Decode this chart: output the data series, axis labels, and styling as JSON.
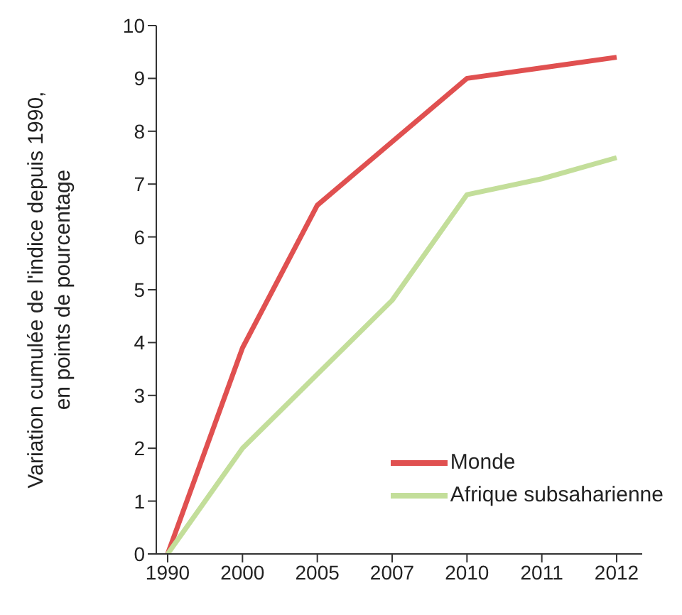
{
  "chart_data": {
    "type": "line",
    "ylabel": "Variation cumulée de l'indice depuis 1990,\nen points de pourcentage",
    "categories": [
      "1990",
      "2000",
      "2005",
      "2007",
      "2010",
      "2011",
      "2012"
    ],
    "series": [
      {
        "name": "Monde",
        "color": "#e05050",
        "values": [
          0,
          3.9,
          6.6,
          7.8,
          9.0,
          9.2,
          9.4
        ]
      },
      {
        "name": "Afrique subsaharienne",
        "color": "#c3de9a",
        "values": [
          0,
          2.0,
          3.4,
          4.8,
          6.8,
          7.1,
          7.5
        ]
      }
    ],
    "ylim": [
      0,
      10
    ],
    "yticks": [
      0,
      1,
      2,
      3,
      4,
      5,
      6,
      7,
      8,
      9,
      10
    ],
    "grid": false,
    "legend": "bottom right",
    "marker": "none",
    "line_style": "solid"
  }
}
